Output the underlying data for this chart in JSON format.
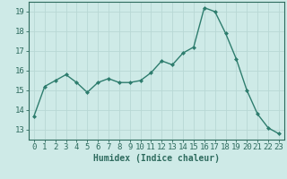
{
  "x": [
    0,
    1,
    2,
    3,
    4,
    5,
    6,
    7,
    8,
    9,
    10,
    11,
    12,
    13,
    14,
    15,
    16,
    17,
    18,
    19,
    20,
    21,
    22,
    23
  ],
  "y": [
    13.7,
    15.2,
    15.5,
    15.8,
    15.4,
    14.9,
    15.4,
    15.6,
    15.4,
    15.4,
    15.5,
    15.9,
    16.5,
    16.3,
    16.9,
    17.2,
    19.2,
    19.0,
    17.9,
    16.6,
    15.0,
    13.8,
    13.1,
    12.8
  ],
  "line_color": "#2e7d6e",
  "marker": "D",
  "markersize": 2,
  "linewidth": 1.0,
  "bg_color": "#ceeae7",
  "grid_color": "#b8d8d4",
  "xlabel": "Humidex (Indice chaleur)",
  "xlim": [
    -0.5,
    23.5
  ],
  "ylim": [
    12.5,
    19.5
  ],
  "yticks": [
    13,
    14,
    15,
    16,
    17,
    18,
    19
  ],
  "xticks": [
    0,
    1,
    2,
    3,
    4,
    5,
    6,
    7,
    8,
    9,
    10,
    11,
    12,
    13,
    14,
    15,
    16,
    17,
    18,
    19,
    20,
    21,
    22,
    23
  ],
  "xlabel_fontsize": 7,
  "tick_fontsize": 6.5,
  "axis_color": "#2e6b5e"
}
